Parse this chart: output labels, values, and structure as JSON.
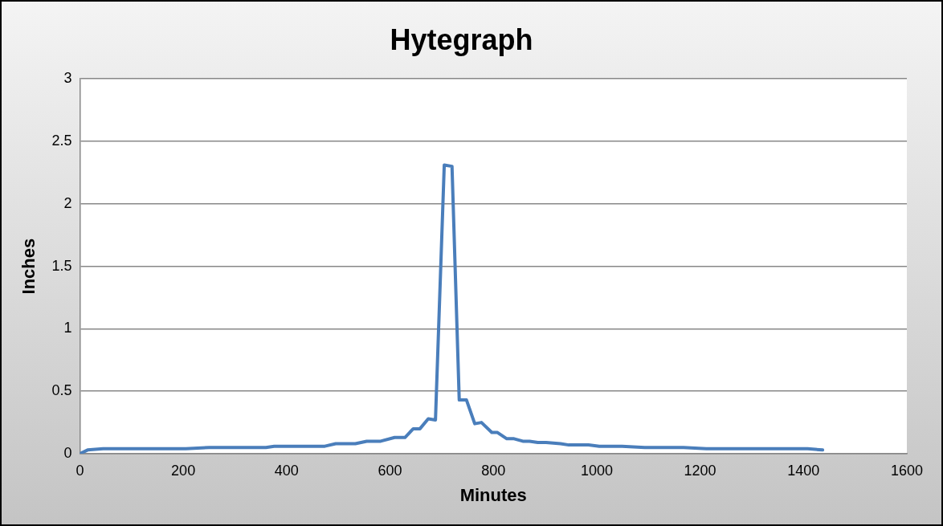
{
  "chart_data": {
    "type": "line",
    "title": "Hytegraph",
    "xlabel": "Minutes",
    "ylabel": "Inches",
    "x": [
      0,
      15,
      45,
      205,
      250,
      360,
      376,
      474,
      495,
      533,
      555,
      582,
      609,
      629,
      645,
      658,
      674,
      688,
      705,
      720,
      734,
      748,
      764,
      777,
      797,
      808,
      826,
      840,
      857,
      870,
      886,
      902,
      930,
      946,
      984,
      1005,
      1049,
      1093,
      1168,
      1212,
      1408,
      1437
    ],
    "series": [
      {
        "color": "#4a7ebb",
        "values": [
          0,
          0.03,
          0.04,
          0.04,
          0.05,
          0.05,
          0.06,
          0.06,
          0.08,
          0.08,
          0.1,
          0.1,
          0.13,
          0.13,
          0.2,
          0.2,
          0.28,
          0.27,
          2.31,
          2.3,
          0.43,
          0.43,
          0.24,
          0.25,
          0.17,
          0.17,
          0.12,
          0.12,
          0.1,
          0.1,
          0.09,
          0.09,
          0.08,
          0.07,
          0.07,
          0.06,
          0.06,
          0.05,
          0.05,
          0.04,
          0.04,
          0.03
        ]
      }
    ],
    "xlim": [
      0,
      1600
    ],
    "xticks": [
      0,
      200,
      400,
      600,
      800,
      1000,
      1200,
      1400,
      1600
    ],
    "ylim": [
      0,
      3
    ],
    "yticks": [
      0,
      0.5,
      1,
      1.5,
      2,
      2.5,
      3
    ],
    "grid": "y",
    "legend": false,
    "marker": "none",
    "line_style": "solid"
  }
}
